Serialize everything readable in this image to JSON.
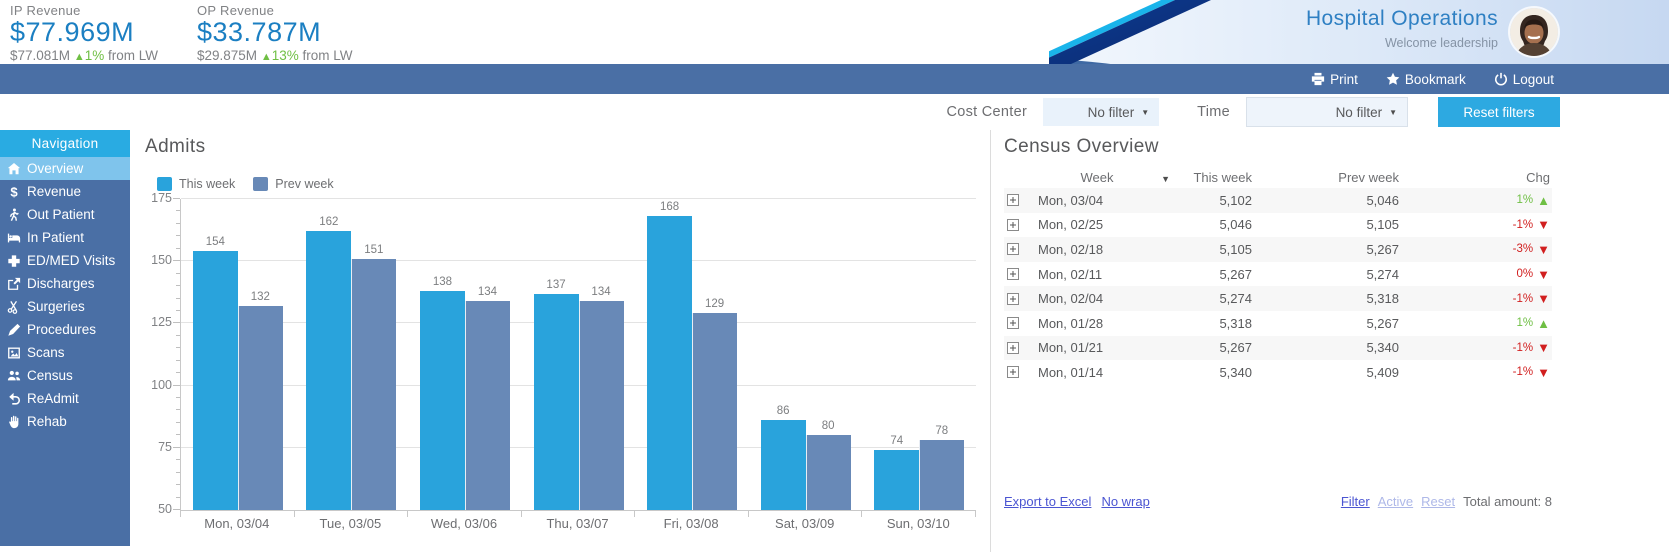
{
  "header": {
    "title": "Hospital Operations",
    "welcome": "Welcome leadership",
    "kpis": [
      {
        "label": "IP Revenue",
        "value": "$77.969M",
        "prev": "$77.081M",
        "delta": "1%",
        "delta_dir": "up",
        "suffix": "from LW"
      },
      {
        "label": "OP Revenue",
        "value": "$33.787M",
        "prev": "$29.875M",
        "delta": "13%",
        "delta_dir": "up",
        "suffix": "from LW"
      }
    ]
  },
  "navbar": {
    "items": [
      {
        "icon": "print-icon",
        "label": "Print"
      },
      {
        "icon": "bookmark-icon",
        "label": "Bookmark"
      },
      {
        "icon": "logout-icon",
        "label": "Logout"
      }
    ]
  },
  "filters": {
    "cost_center_label": "Cost Center",
    "cost_center_value": "No filter",
    "time_label": "Time",
    "time_value": "No filter",
    "reset_label": "Reset filters"
  },
  "sidebar": {
    "header": "Navigation",
    "items": [
      {
        "icon": "home-icon",
        "label": "Overview",
        "active": true
      },
      {
        "icon": "dollar-icon",
        "label": "Revenue",
        "active": false
      },
      {
        "icon": "walking-person-icon",
        "label": "Out Patient",
        "active": false
      },
      {
        "icon": "bed-icon",
        "label": "In Patient",
        "active": false
      },
      {
        "icon": "medical-cross-icon",
        "label": "ED/MED Visits",
        "active": false
      },
      {
        "icon": "discharge-arrow-icon",
        "label": "Discharges",
        "active": false
      },
      {
        "icon": "scissors-icon",
        "label": "Surgeries",
        "active": false
      },
      {
        "icon": "scalpel-icon",
        "label": "Procedures",
        "active": false
      },
      {
        "icon": "scan-image-icon",
        "label": "Scans",
        "active": false
      },
      {
        "icon": "people-icon",
        "label": "Census",
        "active": false
      },
      {
        "icon": "undo-arrow-icon",
        "label": "ReAdmit",
        "active": false
      },
      {
        "icon": "hand-icon",
        "label": "Rehab",
        "active": false
      }
    ]
  },
  "chart_data": {
    "type": "bar",
    "title": "Admits",
    "categories": [
      "Mon, 03/04",
      "Tue, 03/05",
      "Wed, 03/06",
      "Thu, 03/07",
      "Fri, 03/08",
      "Sat, 03/09",
      "Sun, 03/10"
    ],
    "series": [
      {
        "name": "This week",
        "color": "#29a3dc",
        "values": [
          154,
          162,
          138,
          137,
          168,
          86,
          74
        ]
      },
      {
        "name": "Prev week",
        "color": "#6889b7",
        "values": [
          132,
          151,
          134,
          134,
          129,
          80,
          78
        ]
      }
    ],
    "xlabel": "",
    "ylabel": "",
    "ylim": [
      50,
      175
    ],
    "yticks": [
      50,
      75,
      100,
      125,
      150,
      175
    ],
    "grid": true,
    "legend_position": "top-left"
  },
  "census": {
    "title": "Census Overview",
    "columns": [
      "Week",
      "This week",
      "Prev week",
      "Chg"
    ],
    "rows": [
      {
        "week": "Mon, 03/04",
        "this_week": "5,102",
        "prev_week": "5,046",
        "chg": "1%",
        "dir": "up"
      },
      {
        "week": "Mon, 02/25",
        "this_week": "5,046",
        "prev_week": "5,105",
        "chg": "-1%",
        "dir": "down"
      },
      {
        "week": "Mon, 02/18",
        "this_week": "5,105",
        "prev_week": "5,267",
        "chg": "-3%",
        "dir": "down"
      },
      {
        "week": "Mon, 02/11",
        "this_week": "5,267",
        "prev_week": "5,274",
        "chg": "0%",
        "dir": "down"
      },
      {
        "week": "Mon, 02/04",
        "this_week": "5,274",
        "prev_week": "5,318",
        "chg": "-1%",
        "dir": "down"
      },
      {
        "week": "Mon, 01/28",
        "this_week": "5,318",
        "prev_week": "5,267",
        "chg": "1%",
        "dir": "up"
      },
      {
        "week": "Mon, 01/21",
        "this_week": "5,267",
        "prev_week": "5,340",
        "chg": "-1%",
        "dir": "down"
      },
      {
        "week": "Mon, 01/14",
        "this_week": "5,340",
        "prev_week": "5,409",
        "chg": "-1%",
        "dir": "down"
      }
    ],
    "footer": {
      "export_label": "Export to Excel",
      "nowrap_label": "No wrap",
      "filter_label": "Filter",
      "active_label": "Active",
      "reset_label": "Reset",
      "total_label": "Total amount: 8"
    }
  },
  "colors": {
    "accent": "#29abe2",
    "slate_blue": "#4a6fa5",
    "active_item": "#7fc4ec",
    "kpi_blue": "#1b7fc2",
    "green": "#6fbf44",
    "red": "#d11f1f"
  }
}
